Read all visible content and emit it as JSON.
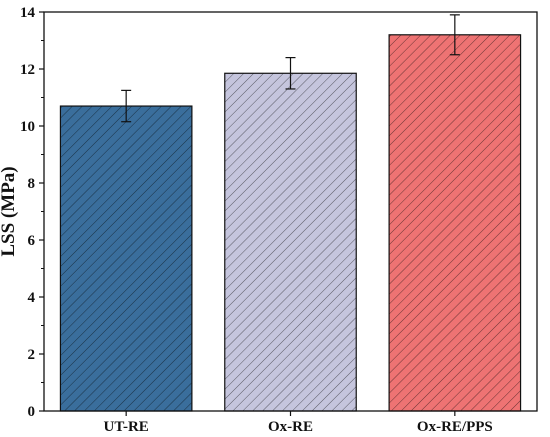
{
  "chart_data": {
    "type": "bar",
    "title": "",
    "xlabel": "",
    "ylabel": "LSS (MPa)",
    "ylim": [
      0,
      14
    ],
    "yticks": [
      0,
      2,
      4,
      6,
      8,
      10,
      12,
      14
    ],
    "grid": false,
    "legend": "none",
    "hatch": "diagonal",
    "categories": [
      "UT-RE",
      "Ox-RE",
      "Ox-RE/PPS"
    ],
    "values": [
      10.7,
      11.85,
      13.2
    ],
    "errors": [
      0.55,
      0.55,
      0.7
    ],
    "colors": [
      "#3a6e9c",
      "#c5c5dd",
      "#ee7373"
    ]
  }
}
